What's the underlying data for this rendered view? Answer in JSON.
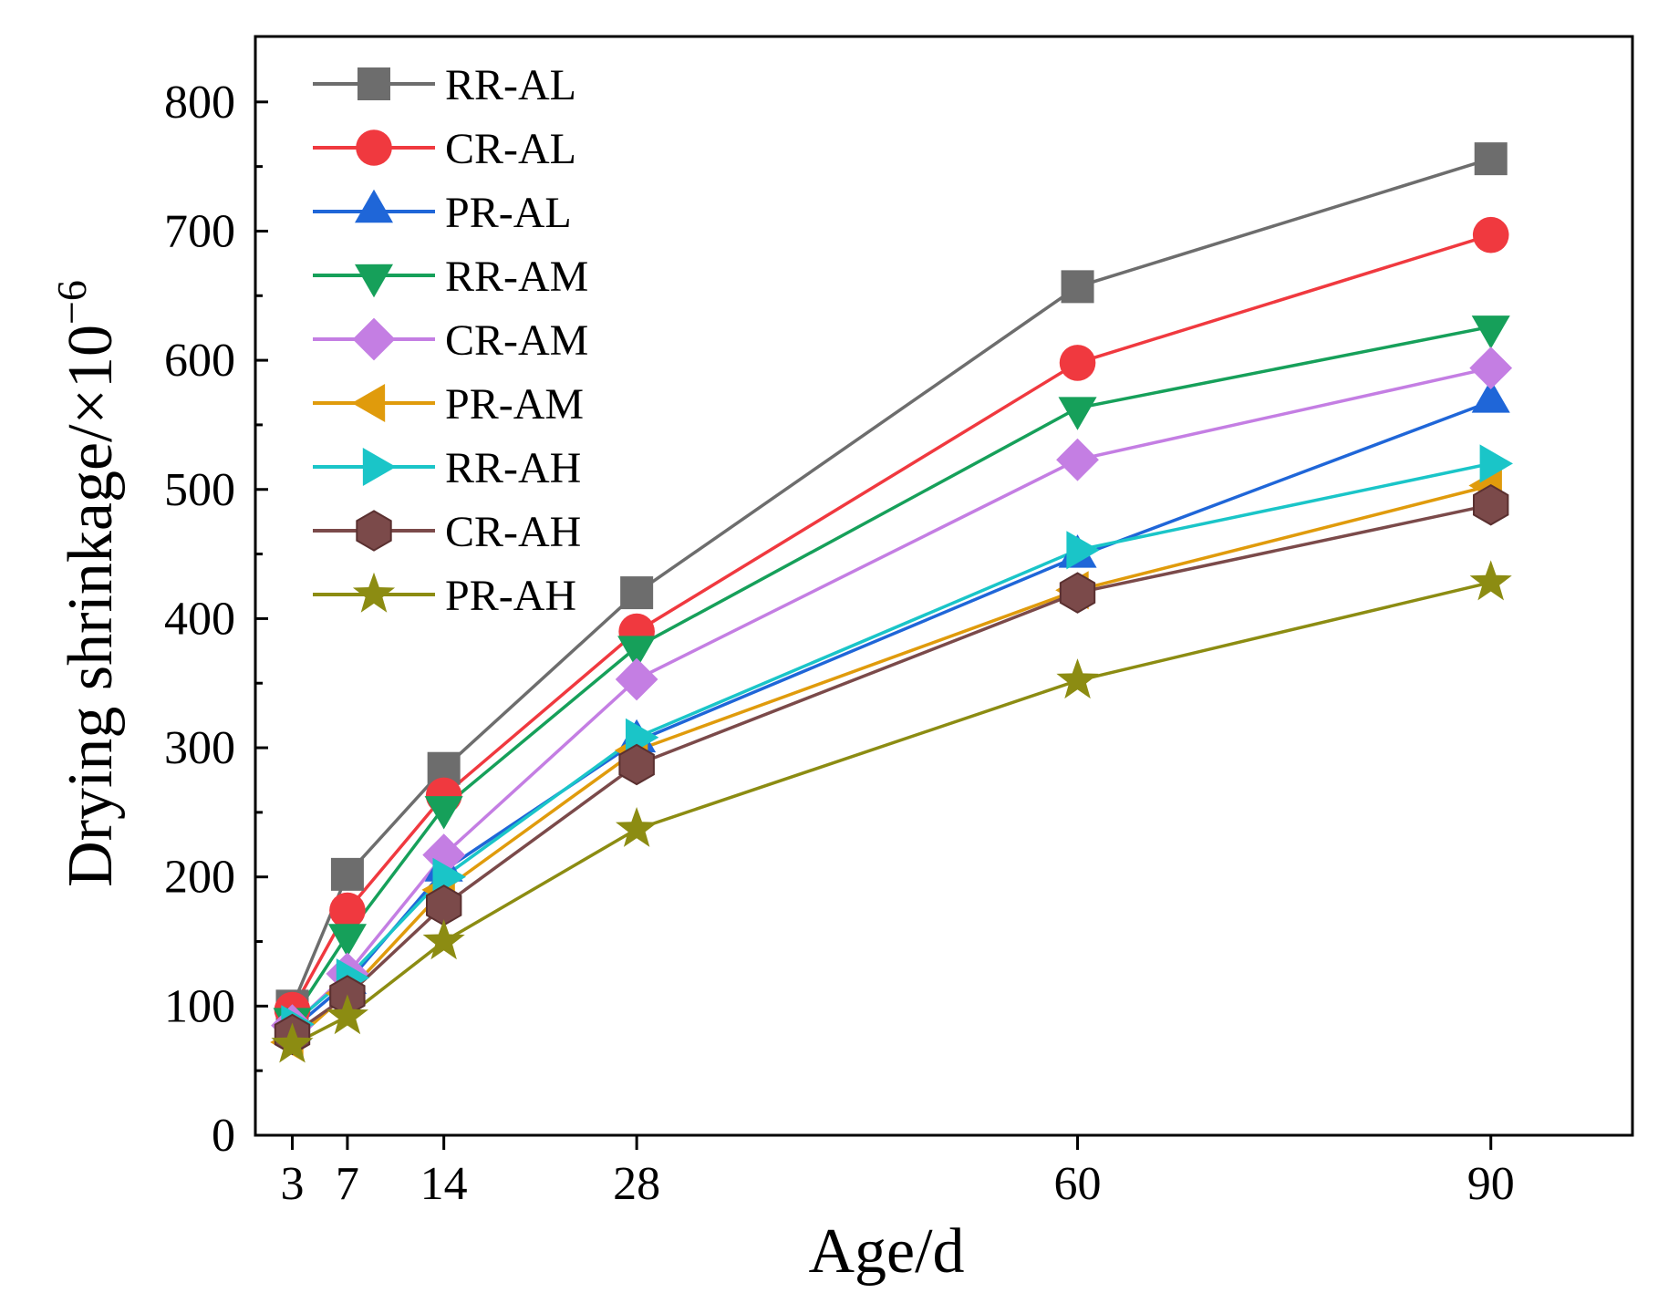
{
  "chart_data": {
    "type": "line",
    "title": "",
    "xlabel": "Age/d",
    "ylabel": "Drying shrinkage/×10",
    "ylabel_exponent": "−6",
    "x": [
      3,
      7,
      14,
      28,
      60,
      90
    ],
    "xlim": [
      0,
      100
    ],
    "ylim": [
      0,
      850
    ],
    "xticks": [
      3,
      7,
      14,
      28,
      60,
      90
    ],
    "yticks": [
      0,
      100,
      200,
      300,
      400,
      500,
      600,
      700,
      800
    ],
    "legend_position": "top-left",
    "grid": false,
    "series": [
      {
        "name": "RR-AL",
        "color": "#6d6d6d",
        "marker": "square",
        "values": [
          100,
          202,
          284,
          420,
          657,
          756
        ]
      },
      {
        "name": "CR-AL",
        "color": "#f0393f",
        "marker": "circle",
        "values": [
          97,
          174,
          263,
          390,
          598,
          697
        ]
      },
      {
        "name": "PR-AL",
        "color": "#1f66d8",
        "marker": "triangle-up",
        "values": [
          82,
          118,
          205,
          305,
          448,
          568
        ]
      },
      {
        "name": "RR-AM",
        "color": "#16a05a",
        "marker": "triangle-down",
        "values": [
          90,
          155,
          254,
          378,
          563,
          626
        ]
      },
      {
        "name": "CR-AM",
        "color": "#c47ee3",
        "marker": "diamond",
        "values": [
          85,
          125,
          217,
          353,
          523,
          594
        ]
      },
      {
        "name": "PR-AM",
        "color": "#e09b0c",
        "marker": "triangle-left",
        "values": [
          72,
          110,
          190,
          298,
          422,
          503
        ]
      },
      {
        "name": "RR-AH",
        "color": "#1ac5c8",
        "marker": "triangle-right",
        "values": [
          86,
          122,
          200,
          308,
          453,
          520
        ]
      },
      {
        "name": "CR-AH",
        "color": "#7b4a4a",
        "marker": "hexagon",
        "values": [
          78,
          108,
          178,
          287,
          420,
          488
        ]
      },
      {
        "name": "PR-AH",
        "color": "#8c8c12",
        "marker": "star",
        "values": [
          70,
          92,
          150,
          237,
          352,
          428
        ]
      }
    ]
  }
}
